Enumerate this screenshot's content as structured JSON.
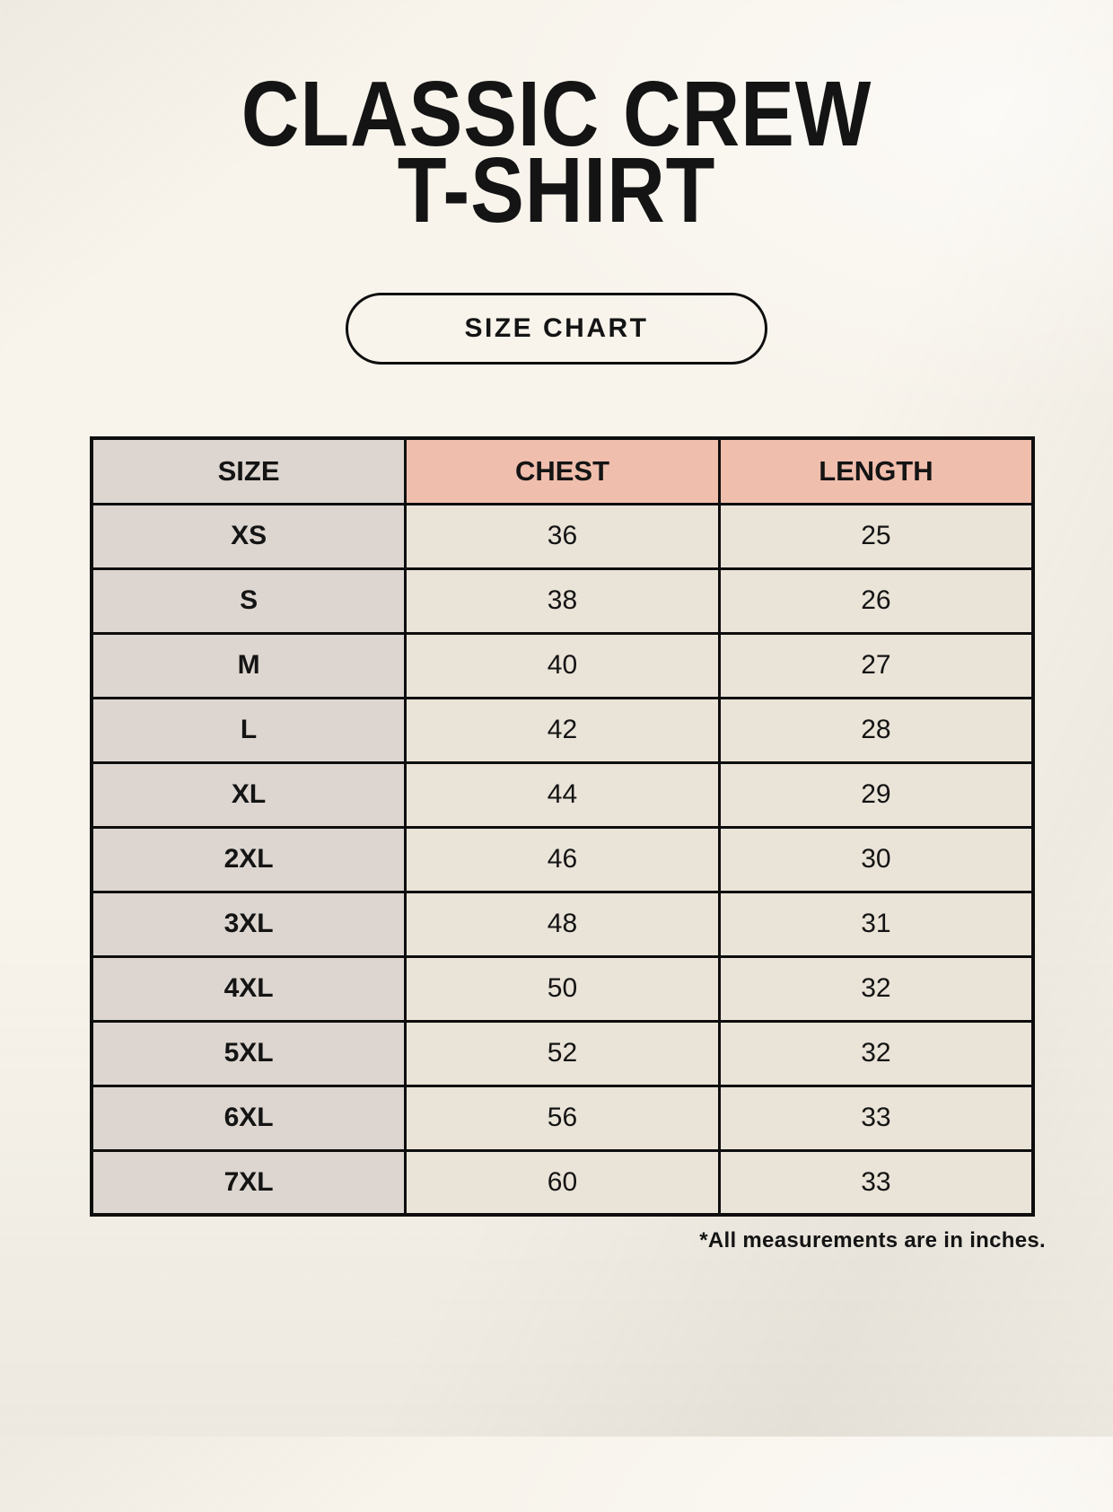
{
  "header": {
    "title_lines": [
      "CLASSIC CREW",
      "T-SHIRT"
    ],
    "badge_label": "SIZE CHART"
  },
  "chart_data": {
    "type": "table",
    "title": "CLASSIC CREW T-SHIRT",
    "columns": [
      "SIZE",
      "CHEST",
      "LENGTH"
    ],
    "rows": [
      {
        "size": "XS",
        "chest": "36",
        "length": "25"
      },
      {
        "size": "S",
        "chest": "38",
        "length": "26"
      },
      {
        "size": "M",
        "chest": "40",
        "length": "27"
      },
      {
        "size": "L",
        "chest": "42",
        "length": "28"
      },
      {
        "size": "XL",
        "chest": "44",
        "length": "29"
      },
      {
        "size": "2XL",
        "chest": "46",
        "length": "30"
      },
      {
        "size": "3XL",
        "chest": "48",
        "length": "31"
      },
      {
        "size": "4XL",
        "chest": "50",
        "length": "32"
      },
      {
        "size": "5XL",
        "chest": "52",
        "length": "32"
      },
      {
        "size": "6XL",
        "chest": "56",
        "length": "33"
      },
      {
        "size": "7XL",
        "chest": "60",
        "length": "33"
      }
    ]
  },
  "footer": {
    "note": "*All measurements are in inches."
  },
  "colors": {
    "page_bg": "#f8f4ec",
    "header_accent": "#f0bead",
    "size_column_bg": "#ddd6d0",
    "cell_bg": "#eae3d8",
    "border": "#0e0e0e",
    "text": "#141414"
  }
}
